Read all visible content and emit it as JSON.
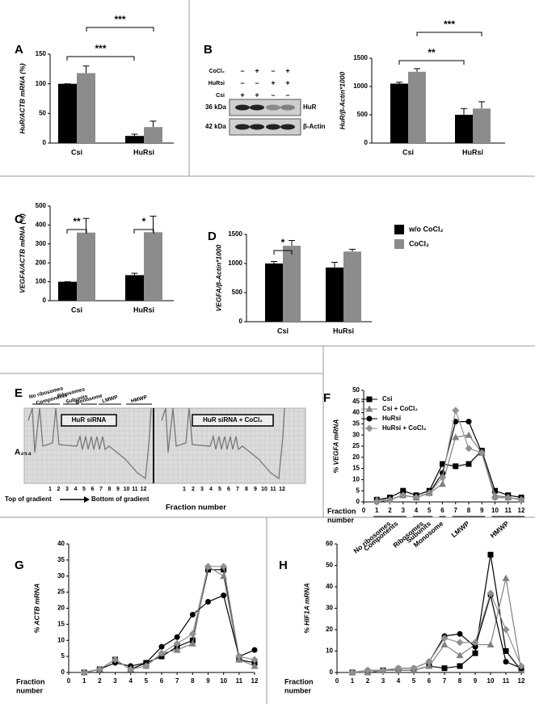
{
  "chart_data": [
    {
      "type": "bar",
      "panel": "A",
      "ylabel": "HuR/ACTB mRNA (%)",
      "categories": [
        "Csi",
        "HuRsi"
      ],
      "series": [
        {
          "color": "#000000",
          "values": [
            100,
            12
          ],
          "errors": [
            0,
            3
          ]
        },
        {
          "color": "#8c8c8c",
          "values": [
            118,
            27
          ],
          "errors": [
            12,
            10
          ]
        }
      ],
      "ylim": [
        0,
        150
      ],
      "yticks": [
        0,
        50,
        100,
        150
      ],
      "significance": [
        "***",
        "***"
      ]
    },
    {
      "type": "bar",
      "panel": "B",
      "ylabel": "HuR/β-Actin*1000",
      "categories": [
        "Csi",
        "HuRsi"
      ],
      "series": [
        {
          "color": "#000000",
          "values": [
            1050,
            500
          ],
          "errors": [
            25,
            110
          ]
        },
        {
          "color": "#8c8c8c",
          "values": [
            1260,
            610
          ],
          "errors": [
            55,
            120
          ]
        }
      ],
      "ylim": [
        0,
        1500
      ],
      "yticks": [
        0,
        500,
        1000,
        1500
      ],
      "significance": [
        "**",
        "***"
      ],
      "blot": {
        "rows": [
          {
            "label": "CoCl₂",
            "signs": [
              "–",
              "+",
              "–",
              "+"
            ]
          },
          {
            "label": "HuRsi",
            "signs": [
              "–",
              "–",
              "+",
              "+"
            ]
          },
          {
            "label": "Csi",
            "signs": [
              "+",
              "+",
              "–",
              "–"
            ]
          }
        ],
        "bands": [
          {
            "size": "36 kDa",
            "name": "HuR"
          },
          {
            "size": "42 kDa",
            "name": "β-Actin"
          }
        ]
      }
    },
    {
      "type": "bar",
      "panel": "C",
      "ylabel": "VEGFA/ACTB mRNA (%)",
      "categories": [
        "Csi",
        "HuRsi"
      ],
      "series": [
        {
          "color": "#000000",
          "values": [
            100,
            135
          ],
          "errors": [
            0,
            10
          ]
        },
        {
          "color": "#8c8c8c",
          "values": [
            360,
            362
          ],
          "errors": [
            75,
            85
          ]
        }
      ],
      "ylim": [
        0,
        500
      ],
      "yticks": [
        0,
        100,
        200,
        300,
        400,
        500
      ],
      "significance": [
        "**",
        "*"
      ]
    },
    {
      "type": "bar",
      "panel": "D",
      "ylabel": "VEGFA/β-Actin*1000",
      "categories": [
        "Csi",
        "HuRsi"
      ],
      "series": [
        {
          "name": "w/o CoCl₂",
          "color": "#000000",
          "values": [
            1000,
            930
          ],
          "errors": [
            35,
            90
          ]
        },
        {
          "name": "CoCl₂",
          "color": "#8c8c8c",
          "values": [
            1305,
            1205
          ],
          "errors": [
            90,
            40
          ]
        }
      ],
      "ylim": [
        0,
        1500
      ],
      "yticks": [
        0,
        500,
        1000,
        1500
      ],
      "significance": [
        "*"
      ]
    },
    {
      "type": "line",
      "panel": "F",
      "ylabel": "% VEGFA mRNA",
      "xlabel": [
        "Fraction",
        "number"
      ],
      "x": [
        1,
        2,
        3,
        4,
        5,
        6,
        7,
        8,
        9,
        10,
        11,
        12
      ],
      "xlim": [
        0,
        12
      ],
      "xticks": [
        0,
        1,
        2,
        3,
        4,
        5,
        6,
        7,
        8,
        9,
        10,
        11,
        12
      ],
      "ylim": [
        0,
        50
      ],
      "yticks": [
        0,
        5,
        10,
        15,
        20,
        25,
        30,
        35,
        40,
        45,
        50
      ],
      "series": [
        {
          "name": "Csi",
          "color": "#000000",
          "values": [
            1,
            2,
            5,
            3,
            5,
            17,
            16,
            17,
            23,
            5,
            3,
            2
          ]
        },
        {
          "name": "Csi + CoCl₂",
          "color": "#808080",
          "values": [
            1,
            1,
            3,
            2,
            4,
            8,
            29,
            30,
            22,
            3,
            2,
            1
          ]
        },
        {
          "name": "HuRsi",
          "color": "#000000",
          "values": [
            0,
            1,
            3,
            2,
            4,
            13,
            36,
            36,
            22,
            2,
            2,
            1
          ]
        },
        {
          "name": "HuRsi + CoCl₂",
          "color": "#909090",
          "values": [
            0,
            1,
            3,
            2,
            4,
            11,
            41,
            24,
            22,
            2,
            2,
            1
          ]
        }
      ],
      "fraction_groups": [
        [
          "No ribosomes",
          "Components"
        ],
        [
          "Ribosomes",
          "Subunits"
        ],
        [
          "Monosome"
        ],
        [
          "LMWP"
        ],
        [
          "HMWP"
        ]
      ]
    },
    {
      "type": "line",
      "panel": "G",
      "ylabel": "% ACTB mRNA",
      "xlabel": [
        "Fraction",
        "number"
      ],
      "x": [
        1,
        2,
        3,
        4,
        5,
        6,
        7,
        8,
        9,
        10,
        11,
        12
      ],
      "xlim": [
        0,
        12
      ],
      "xticks": [
        0,
        1,
        2,
        3,
        4,
        5,
        6,
        7,
        8,
        9,
        10,
        11,
        12
      ],
      "ylim": [
        0,
        40
      ],
      "yticks": [
        0,
        5,
        10,
        15,
        20,
        25,
        30,
        35,
        40
      ],
      "series": [
        {
          "color": "#000000",
          "values": [
            0,
            1,
            4,
            1,
            3,
            5,
            8,
            10,
            32,
            32,
            4,
            3
          ]
        },
        {
          "color": "#808080",
          "values": [
            0,
            1,
            4,
            1,
            2,
            6,
            7,
            9,
            33,
            30,
            4,
            2
          ]
        },
        {
          "color": "#000000",
          "values": [
            0,
            1,
            3,
            2,
            3,
            8,
            11,
            18,
            22,
            24,
            5,
            7
          ]
        },
        {
          "color": "#909090",
          "values": [
            0,
            1,
            4,
            1,
            2,
            6,
            9,
            12,
            33,
            33,
            5,
            4
          ]
        }
      ]
    },
    {
      "type": "line",
      "panel": "H",
      "ylabel": "% HIF1A mRNA",
      "xlabel": [
        "Fraction",
        "number"
      ],
      "x": [
        1,
        2,
        3,
        4,
        5,
        6,
        7,
        8,
        9,
        10,
        11,
        12
      ],
      "xlim": [
        0,
        12
      ],
      "xticks": [
        0,
        1,
        2,
        3,
        4,
        5,
        6,
        7,
        8,
        9,
        10,
        11,
        12
      ],
      "ylim": [
        0,
        60
      ],
      "yticks": [
        0,
        10,
        20,
        30,
        40,
        50,
        60
      ],
      "series": [
        {
          "color": "#000000",
          "values": [
            0,
            0,
            1,
            1,
            1,
            3,
            2,
            3,
            9,
            55,
            10,
            1
          ]
        },
        {
          "color": "#808080",
          "values": [
            0,
            0,
            1,
            1,
            1,
            3,
            13,
            8,
            13,
            13,
            44,
            1
          ]
        },
        {
          "color": "#000000",
          "values": [
            0,
            1,
            1,
            2,
            2,
            5,
            17,
            18,
            12,
            36,
            5,
            2
          ]
        },
        {
          "color": "#909090",
          "values": [
            0,
            1,
            1,
            2,
            2,
            5,
            16,
            14,
            14,
            37,
            20,
            3
          ]
        }
      ]
    }
  ],
  "gradient_profile": {
    "panel": "E",
    "groups": [
      [
        "No ribosomes",
        "Components"
      ],
      [
        "Ribosomes",
        "Subunits"
      ],
      [
        "Monosome"
      ],
      [
        "LMWP"
      ],
      [
        "HMWP"
      ]
    ],
    "traces": [
      "HuR siRNA",
      "HuR siRNA + CoCl₂"
    ],
    "ylabel": "A₂₅₄",
    "fractions": [
      1,
      2,
      3,
      4,
      5,
      6,
      7,
      8,
      9,
      10,
      11,
      12
    ],
    "top": "Top of gradient",
    "bottom": "Bottom of gradient",
    "xlabel": "Fraction number"
  }
}
